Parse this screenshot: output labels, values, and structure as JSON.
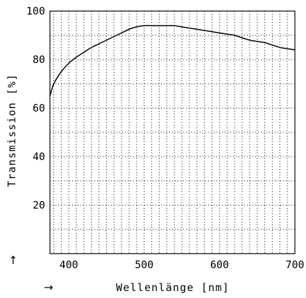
{
  "chart_data": {
    "type": "line",
    "title": "",
    "xlabel": "Wellenlänge [nm]",
    "ylabel": "Transmission [%]",
    "xlim": [
      375,
      700
    ],
    "ylim": [
      0,
      100
    ],
    "x_ticks": [
      400,
      500,
      600,
      700
    ],
    "y_ticks": [
      20,
      40,
      60,
      80,
      100
    ],
    "x_minor_step": 10,
    "y_minor_step": 10,
    "grid": true,
    "legend": "none",
    "arrow_x": "→",
    "arrow_y": "↑",
    "colors": {
      "line": "#000000",
      "grid": "#000000",
      "frame": "#000000",
      "background": "#ffffff"
    },
    "series": [
      {
        "x": [
          375,
          380,
          390,
          400,
          410,
          420,
          430,
          440,
          450,
          460,
          470,
          480,
          490,
          500,
          510,
          520,
          530,
          540,
          550,
          560,
          570,
          580,
          590,
          600,
          610,
          620,
          630,
          640,
          650,
          660,
          670,
          680,
          690,
          700
        ],
        "y": [
          65,
          70,
          75,
          78.5,
          81,
          83,
          85,
          86.5,
          88,
          89.5,
          91,
          92.5,
          93.5,
          94,
          94,
          94,
          94,
          94,
          93.5,
          93,
          92.5,
          92,
          91.5,
          91,
          90.5,
          90,
          89,
          88,
          87.5,
          87,
          86,
          85,
          84.5,
          84
        ]
      }
    ]
  }
}
